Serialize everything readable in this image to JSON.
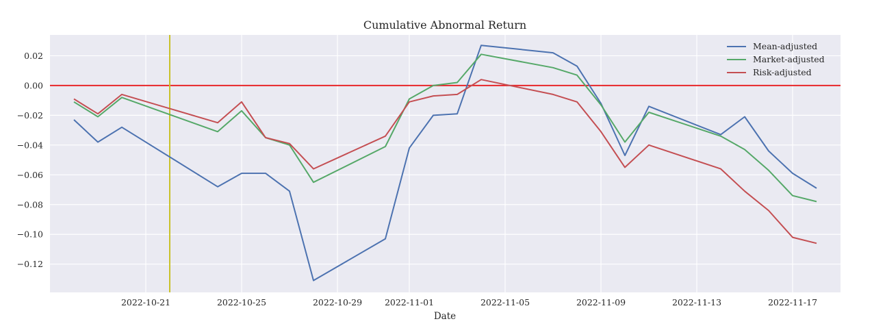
{
  "chart_data": {
    "type": "line",
    "title": "Cumulative Abnormal Return",
    "xlabel": "Date",
    "ylabel": "",
    "x_ticks": [
      "2022-10-21",
      "2022-10-25",
      "2022-10-29",
      "2022-11-01",
      "2022-11-05",
      "2022-11-09",
      "2022-11-13",
      "2022-11-17"
    ],
    "y_ticks": [
      0.02,
      0.0,
      -0.02,
      -0.04,
      -0.06,
      -0.08,
      -0.1,
      -0.12
    ],
    "y_tick_labels": [
      "0.02",
      "0.00",
      "−0.02",
      "−0.04",
      "−0.06",
      "−0.08",
      "−0.10",
      "−0.12"
    ],
    "xlim": [
      "2022-10-17",
      "2022-11-19"
    ],
    "ylim": [
      -0.139,
      0.034
    ],
    "grid": true,
    "legend_position": "top-right",
    "reference_lines": {
      "horizontal": {
        "y": 0.0,
        "color": "#e8262a"
      },
      "vertical": {
        "x": "2022-10-22",
        "color": "#c9c22a"
      }
    },
    "x": [
      "2022-10-18",
      "2022-10-19",
      "2022-10-20",
      "2022-10-24",
      "2022-10-25",
      "2022-10-26",
      "2022-10-27",
      "2022-10-28",
      "2022-10-31",
      "2022-11-01",
      "2022-11-02",
      "2022-11-03",
      "2022-11-04",
      "2022-11-07",
      "2022-11-08",
      "2022-11-09",
      "2022-11-10",
      "2022-11-11",
      "2022-11-14",
      "2022-11-15",
      "2022-11-16",
      "2022-11-17",
      "2022-11-18"
    ],
    "series": [
      {
        "name": "Mean-adjusted",
        "color": "#4c72b0",
        "values": [
          -0.023,
          -0.038,
          -0.028,
          -0.068,
          -0.059,
          -0.059,
          -0.071,
          -0.131,
          -0.103,
          -0.042,
          -0.02,
          -0.019,
          0.027,
          0.022,
          0.013,
          -0.012,
          -0.047,
          -0.014,
          -0.033,
          -0.021,
          -0.044,
          -0.059,
          -0.069
        ]
      },
      {
        "name": "Market-adjusted",
        "color": "#55a868",
        "values": [
          -0.011,
          -0.021,
          -0.008,
          -0.031,
          -0.017,
          -0.035,
          -0.04,
          -0.065,
          -0.041,
          -0.009,
          0.0,
          0.002,
          0.021,
          0.012,
          0.007,
          -0.013,
          -0.038,
          -0.018,
          -0.034,
          -0.043,
          -0.057,
          -0.074,
          -0.078
        ]
      },
      {
        "name": "Risk-adjusted",
        "color": "#c44e52",
        "values": [
          -0.009,
          -0.019,
          -0.006,
          -0.025,
          -0.011,
          -0.035,
          -0.039,
          -0.056,
          -0.034,
          -0.011,
          -0.007,
          -0.006,
          0.004,
          -0.006,
          -0.011,
          -0.031,
          -0.055,
          -0.04,
          -0.056,
          -0.071,
          -0.084,
          -0.102,
          -0.106
        ]
      }
    ]
  }
}
